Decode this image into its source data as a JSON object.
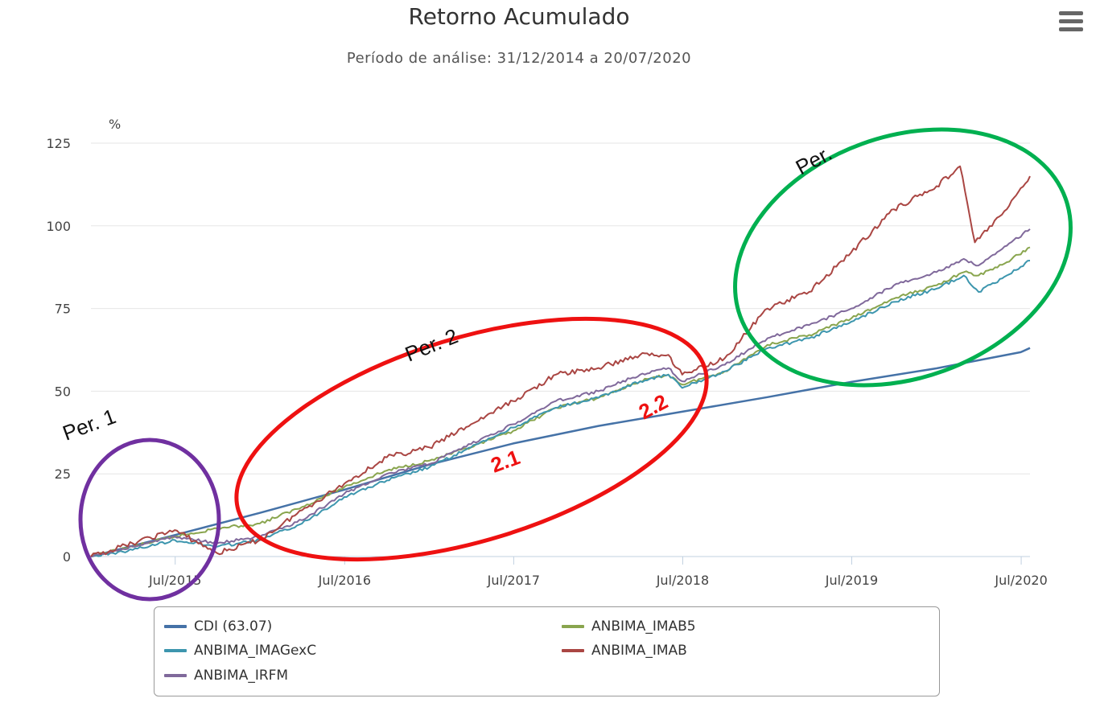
{
  "chart_data": {
    "type": "line",
    "title": "Retorno Acumulado",
    "subtitle": "Período de análise: 31/12/2014 a 20/07/2020",
    "ylabel": "%",
    "xlabel": "",
    "ylim": [
      0,
      125
    ],
    "xlim": [
      "2014-12-31",
      "2020-07-20"
    ],
    "y_ticks": [
      0,
      25,
      50,
      75,
      100,
      125
    ],
    "x_ticks": [
      {
        "label": "Jul/2015",
        "date": "2015-07-01"
      },
      {
        "label": "Jul/2016",
        "date": "2016-07-01"
      },
      {
        "label": "Jul/2017",
        "date": "2017-07-01"
      },
      {
        "label": "Jul/2018",
        "date": "2018-07-01"
      },
      {
        "label": "Jul/2019",
        "date": "2019-07-01"
      },
      {
        "label": "Jul/2020",
        "date": "2020-07-01"
      }
    ],
    "grid": true,
    "legend_position": "bottom",
    "series": [
      {
        "name": "CDI (63.07)",
        "color": "#4572a7",
        "points": [
          [
            "2014-12-31",
            0
          ],
          [
            "2015-06-30",
            6.5
          ],
          [
            "2015-12-31",
            13.2
          ],
          [
            "2016-06-30",
            20.2
          ],
          [
            "2016-12-31",
            27.8
          ],
          [
            "2017-06-30",
            34.2
          ],
          [
            "2017-12-31",
            39.5
          ],
          [
            "2018-06-30",
            43.8
          ],
          [
            "2018-12-31",
            48.2
          ],
          [
            "2019-06-30",
            52.8
          ],
          [
            "2019-12-31",
            56.9
          ],
          [
            "2020-06-30",
            61.8
          ],
          [
            "2020-07-20",
            63.07
          ]
        ]
      },
      {
        "name": "ANBIMA_IMAB5",
        "color": "#89a54e",
        "points": [
          [
            "2014-12-31",
            0
          ],
          [
            "2015-03-31",
            3
          ],
          [
            "2015-06-30",
            6
          ],
          [
            "2015-09-30",
            8.5
          ],
          [
            "2015-12-31",
            10
          ],
          [
            "2016-03-31",
            15
          ],
          [
            "2016-06-30",
            21
          ],
          [
            "2016-09-30",
            26
          ],
          [
            "2016-12-31",
            29
          ],
          [
            "2017-03-31",
            33
          ],
          [
            "2017-06-30",
            38
          ],
          [
            "2017-09-30",
            45
          ],
          [
            "2017-12-31",
            48
          ],
          [
            "2018-03-31",
            53
          ],
          [
            "2018-05-31",
            55
          ],
          [
            "2018-06-30",
            52
          ],
          [
            "2018-09-30",
            56
          ],
          [
            "2018-12-31",
            64
          ],
          [
            "2019-03-31",
            67
          ],
          [
            "2019-06-30",
            72
          ],
          [
            "2019-09-30",
            78
          ],
          [
            "2019-12-31",
            82
          ],
          [
            "2020-02-28",
            86
          ],
          [
            "2020-03-31",
            85
          ],
          [
            "2020-05-31",
            89
          ],
          [
            "2020-07-20",
            93.5
          ]
        ]
      },
      {
        "name": "ANBIMA_IMAGexC",
        "color": "#3d96ae",
        "points": [
          [
            "2014-12-31",
            0
          ],
          [
            "2015-03-31",
            2
          ],
          [
            "2015-06-30",
            5
          ],
          [
            "2015-09-30",
            3
          ],
          [
            "2015-12-31",
            5
          ],
          [
            "2016-03-31",
            10
          ],
          [
            "2016-06-30",
            18
          ],
          [
            "2016-09-30",
            23
          ],
          [
            "2016-12-31",
            27
          ],
          [
            "2017-03-31",
            33
          ],
          [
            "2017-06-30",
            39
          ],
          [
            "2017-09-30",
            45
          ],
          [
            "2017-12-31",
            48
          ],
          [
            "2018-03-31",
            53
          ],
          [
            "2018-05-31",
            55
          ],
          [
            "2018-06-30",
            51
          ],
          [
            "2018-09-30",
            56
          ],
          [
            "2018-12-31",
            63
          ],
          [
            "2019-03-31",
            66
          ],
          [
            "2019-06-30",
            71
          ],
          [
            "2019-09-30",
            77
          ],
          [
            "2019-12-31",
            81
          ],
          [
            "2020-02-28",
            85
          ],
          [
            "2020-03-31",
            80
          ],
          [
            "2020-05-31",
            85
          ],
          [
            "2020-07-20",
            89.5
          ]
        ]
      },
      {
        "name": "ANBIMA_IMAB",
        "color": "#aa4643",
        "points": [
          [
            "2014-12-31",
            0
          ],
          [
            "2015-03-31",
            4
          ],
          [
            "2015-06-30",
            8
          ],
          [
            "2015-09-30",
            1
          ],
          [
            "2015-12-31",
            5
          ],
          [
            "2016-03-31",
            14
          ],
          [
            "2016-06-30",
            22
          ],
          [
            "2016-09-30",
            30
          ],
          [
            "2016-12-31",
            33
          ],
          [
            "2017-03-31",
            40
          ],
          [
            "2017-06-30",
            47
          ],
          [
            "2017-09-30",
            55
          ],
          [
            "2017-12-31",
            57
          ],
          [
            "2018-03-31",
            61
          ],
          [
            "2018-05-31",
            61
          ],
          [
            "2018-06-30",
            55
          ],
          [
            "2018-09-30",
            60
          ],
          [
            "2018-12-31",
            75
          ],
          [
            "2019-03-31",
            80
          ],
          [
            "2019-06-30",
            92
          ],
          [
            "2019-09-30",
            105
          ],
          [
            "2019-12-31",
            112
          ],
          [
            "2020-02-20",
            118
          ],
          [
            "2020-03-23",
            95
          ],
          [
            "2020-05-31",
            105
          ],
          [
            "2020-07-20",
            115
          ]
        ]
      },
      {
        "name": "ANBIMA_IRFM",
        "color": "#80699b",
        "points": [
          [
            "2014-12-31",
            0
          ],
          [
            "2015-03-31",
            3
          ],
          [
            "2015-06-30",
            6
          ],
          [
            "2015-09-30",
            4
          ],
          [
            "2015-12-31",
            6
          ],
          [
            "2016-03-31",
            11
          ],
          [
            "2016-06-30",
            19
          ],
          [
            "2016-09-30",
            25
          ],
          [
            "2016-12-31",
            28
          ],
          [
            "2017-03-31",
            34
          ],
          [
            "2017-06-30",
            40
          ],
          [
            "2017-09-30",
            47
          ],
          [
            "2017-12-31",
            50
          ],
          [
            "2018-03-31",
            55
          ],
          [
            "2018-05-31",
            57
          ],
          [
            "2018-06-30",
            53
          ],
          [
            "2018-09-30",
            58
          ],
          [
            "2018-12-31",
            66
          ],
          [
            "2019-03-31",
            70
          ],
          [
            "2019-06-30",
            75
          ],
          [
            "2019-09-30",
            82
          ],
          [
            "2019-12-31",
            86
          ],
          [
            "2020-02-28",
            90
          ],
          [
            "2020-03-31",
            88
          ],
          [
            "2020-05-31",
            94
          ],
          [
            "2020-07-20",
            99
          ]
        ]
      }
    ]
  },
  "annotations": [
    "Per. 1",
    "Per. 2",
    "Per.",
    "2.1",
    "2.2"
  ],
  "ellipse_colors": [
    "#7030a0",
    "#ee1111",
    "#00b050"
  ],
  "menu_icon": "hamburger-menu-icon"
}
